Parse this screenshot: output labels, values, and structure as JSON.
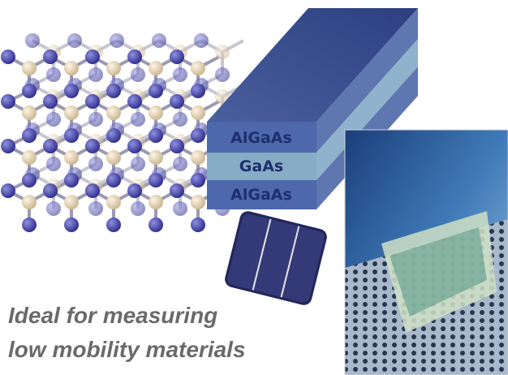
{
  "layers": [
    "AlGaAs",
    "GaAs",
    "AlGaAs"
  ],
  "caption": [
    "Ideal for measuring",
    "low mobility materials"
  ]
}
